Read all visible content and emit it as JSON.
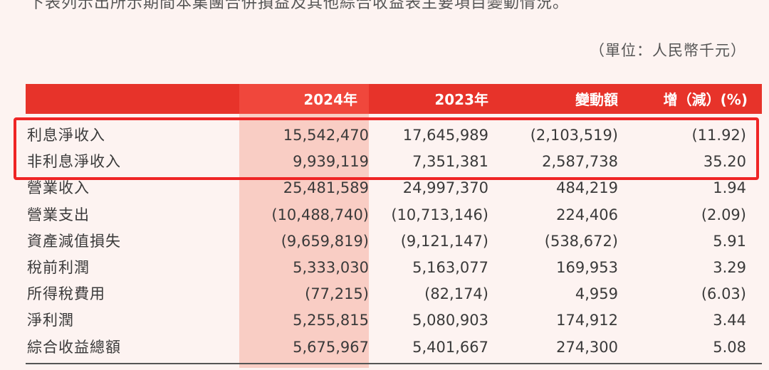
{
  "intro_text": "下表列示出所示期間本集團合併損益及其他綜合收益表主要項目變動情況。",
  "unit": "（單位：人民幣千元）",
  "table": {
    "headers": {
      "label": "",
      "y2024": "2024年",
      "y2023": "2023年",
      "change": "變動額",
      "pct": "增（減）(%)"
    },
    "rows": [
      {
        "label": "利息淨收入",
        "y2024": "15,542,470",
        "y2023": "17,645,989",
        "change": "(2,103,519)",
        "pct": "(11.92)"
      },
      {
        "label": "非利息淨收入",
        "y2024": "9,939,119",
        "y2023": "7,351,381",
        "change": "2,587,738",
        "pct": "35.20"
      },
      {
        "label": "營業收入",
        "y2024": "25,481,589",
        "y2023": "24,997,370",
        "change": "484,219",
        "pct": "1.94"
      },
      {
        "label": "營業支出",
        "y2024": "(10,488,740)",
        "y2023": "(10,713,146)",
        "change": "224,406",
        "pct": "(2.09)"
      },
      {
        "label": "資產減值損失",
        "y2024": "(9,659,819)",
        "y2023": "(9,121,147)",
        "change": "(538,672)",
        "pct": "5.91"
      },
      {
        "label": "稅前利潤",
        "y2024": "5,333,030",
        "y2023": "5,163,077",
        "change": "169,953",
        "pct": "3.29"
      },
      {
        "label": "所得稅費用",
        "y2024": "(77,215)",
        "y2023": "(82,174)",
        "change": "4,959",
        "pct": "(6.03)"
      },
      {
        "label": "淨利潤",
        "y2024": "5,255,815",
        "y2023": "5,080,903",
        "change": "174,912",
        "pct": "3.44"
      },
      {
        "label": "綜合收益總額",
        "y2024": "5,675,967",
        "y2023": "5,401,667",
        "change": "274,300",
        "pct": "5.08"
      }
    ]
  },
  "colors": {
    "header_bg": "#e7332a",
    "highlight_col": "#f9cdc4",
    "annotation_border": "#ef2525"
  }
}
